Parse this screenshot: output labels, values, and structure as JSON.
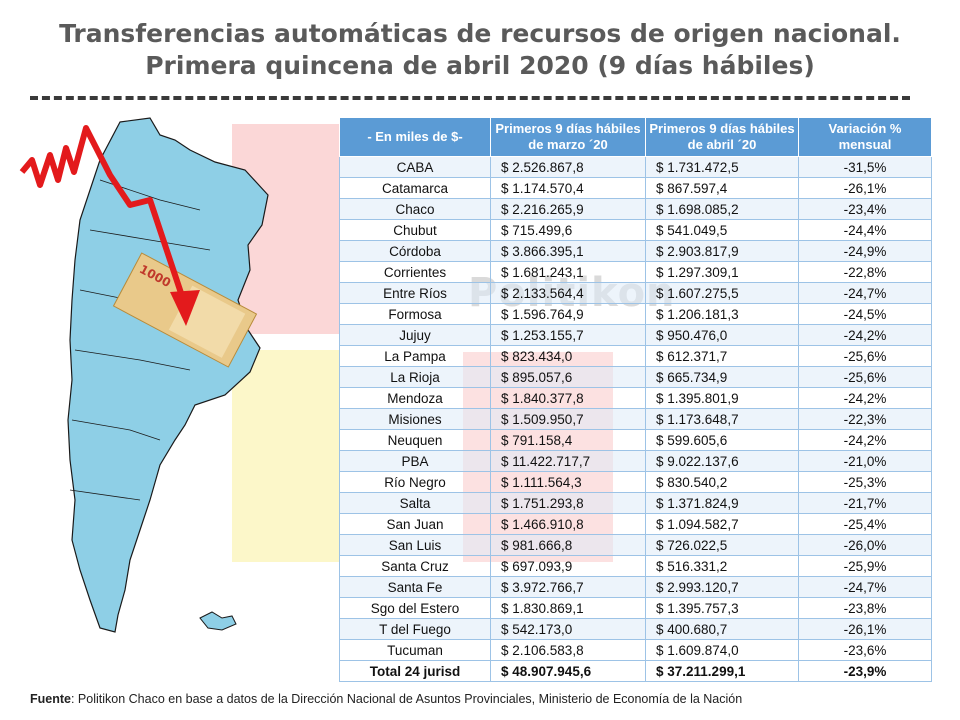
{
  "title": {
    "line1": "Transferencias automáticas de recursos de origen nacional.",
    "line2": "Primera quincena de abril 2020 (9 días hábiles)"
  },
  "watermark": "Politikon",
  "source": {
    "label": "Fuente",
    "text": ": Politikon Chaco en base a datos de la Dirección Nacional de Asuntos Provinciales, Ministerio de Economía de la Nación"
  },
  "banknote": {
    "denomination": "1000"
  },
  "chart_data": {
    "type": "table",
    "columns": [
      "- En miles de $-",
      "Primeros 9 días hábiles de marzo ´20",
      "Primeros 9 días hábiles de abril ´20",
      "Variación % mensual"
    ],
    "rows": [
      [
        "CABA",
        "$ 2.526.867,8",
        "$ 1.731.472,5",
        "-31,5%"
      ],
      [
        "Catamarca",
        "$ 1.174.570,4",
        "$ 867.597,4",
        "-26,1%"
      ],
      [
        "Chaco",
        "$ 2.216.265,9",
        "$ 1.698.085,2",
        "-23,4%"
      ],
      [
        "Chubut",
        "$ 715.499,6",
        "$ 541.049,5",
        "-24,4%"
      ],
      [
        "Córdoba",
        "$ 3.866.395,1",
        "$ 2.903.817,9",
        "-24,9%"
      ],
      [
        "Corrientes",
        "$ 1.681.243,1",
        "$ 1.297.309,1",
        "-22,8%"
      ],
      [
        "Entre Ríos",
        "$ 2.133.564,4",
        "$ 1.607.275,5",
        "-24,7%"
      ],
      [
        "Formosa",
        "$ 1.596.764,9",
        "$ 1.206.181,3",
        "-24,5%"
      ],
      [
        "Jujuy",
        "$ 1.253.155,7",
        "$ 950.476,0",
        "-24,2%"
      ],
      [
        "La Pampa",
        "$ 823.434,0",
        "$ 612.371,7",
        "-25,6%"
      ],
      [
        "La Rioja",
        "$ 895.057,6",
        "$ 665.734,9",
        "-25,6%"
      ],
      [
        "Mendoza",
        "$ 1.840.377,8",
        "$ 1.395.801,9",
        "-24,2%"
      ],
      [
        "Misiones",
        "$ 1.509.950,7",
        "$ 1.173.648,7",
        "-22,3%"
      ],
      [
        "Neuquen",
        "$ 791.158,4",
        "$ 599.605,6",
        "-24,2%"
      ],
      [
        "PBA",
        "$ 11.422.717,7",
        "$ 9.022.137,6",
        "-21,0%"
      ],
      [
        "Río Negro",
        "$ 1.111.564,3",
        "$ 830.540,2",
        "-25,3%"
      ],
      [
        "Salta",
        "$ 1.751.293,8",
        "$ 1.371.824,9",
        "-21,7%"
      ],
      [
        "San Juan",
        "$ 1.466.910,8",
        "$ 1.094.582,7",
        "-25,4%"
      ],
      [
        "San Luis",
        "$ 981.666,8",
        "$ 726.022,5",
        "-26,0%"
      ],
      [
        "Santa Cruz",
        "$ 697.093,9",
        "$ 516.331,2",
        "-25,9%"
      ],
      [
        "Santa Fe",
        "$ 3.972.766,7",
        "$ 2.993.120,7",
        "-24,7%"
      ],
      [
        "Sgo del Estero",
        "$ 1.830.869,1",
        "$ 1.395.757,3",
        "-23,8%"
      ],
      [
        "T del Fuego",
        "$ 542.173,0",
        "$ 400.680,7",
        "-26,1%"
      ],
      [
        "Tucuman",
        "$ 2.106.583,8",
        "$ 1.609.874,0",
        "-23,6%"
      ]
    ],
    "total": [
      "Total 24 jurisd",
      "$ 48.907.945,6",
      "$ 37.211.299,1",
      "-23,9%"
    ]
  },
  "colors": {
    "header_bg": "#5b9bd5",
    "row_tint": "#deebf7",
    "map_fill": "#8ecfe6",
    "arrow": "#e31a1c",
    "highlight_pink": "#f9c9c9",
    "highlight_yellow": "#fbf6bf"
  }
}
